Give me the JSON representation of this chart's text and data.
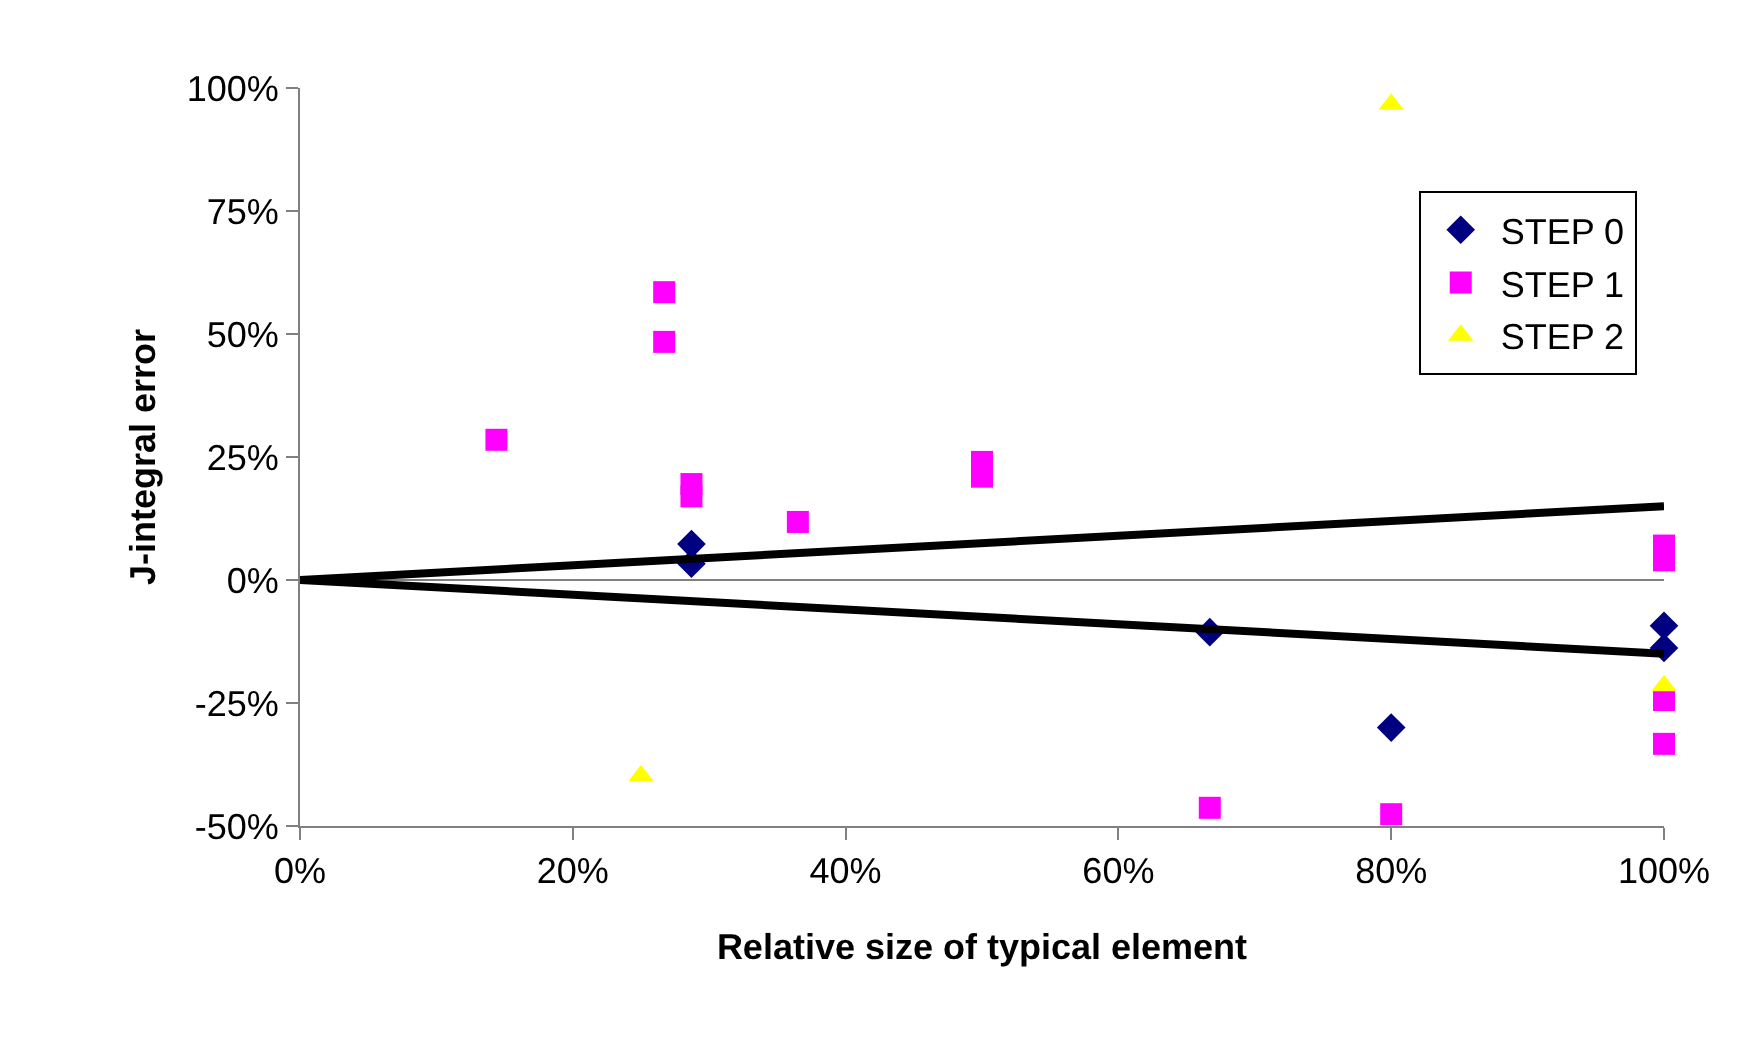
{
  "chart_data": {
    "type": "scatter",
    "xlabel": "Relative size of typical element",
    "ylabel": "J-integral error",
    "xlim": [
      0,
      100
    ],
    "ylim": [
      -50,
      100
    ],
    "xticks": [
      {
        "value": 0,
        "label": "0%"
      },
      {
        "value": 20,
        "label": "20%"
      },
      {
        "value": 40,
        "label": "40%"
      },
      {
        "value": 60,
        "label": "60%"
      },
      {
        "value": 80,
        "label": "80%"
      },
      {
        "value": 100,
        "label": "100%"
      }
    ],
    "yticks": [
      {
        "value": -50,
        "label": "-50%"
      },
      {
        "value": -25,
        "label": "-25%"
      },
      {
        "value": 0,
        "label": "0%"
      },
      {
        "value": 25,
        "label": "25%"
      },
      {
        "value": 50,
        "label": "50%"
      },
      {
        "value": 75,
        "label": "75%"
      },
      {
        "value": 100,
        "label": "100%"
      }
    ],
    "grid": false,
    "legend": "top right",
    "ref_lines": [
      {
        "axis": "y",
        "value": 0,
        "color": "#808080"
      }
    ],
    "series": [
      {
        "name": "STEP 0",
        "color": "#000080",
        "marker": "diamond",
        "x": [
          28.7,
          28.7,
          66.7,
          80,
          100,
          100
        ],
        "values": [
          7.3,
          3.3,
          -10.6,
          -30,
          -9.3,
          -13.8
        ]
      },
      {
        "name": "STEP 1",
        "color": "#ff00ff",
        "marker": "square",
        "x": [
          26.7,
          26.7,
          14.4,
          28.7,
          28.7,
          36.5,
          50,
          50,
          100,
          100,
          100,
          100,
          66.7,
          80
        ],
        "values": [
          58.5,
          48.4,
          28.5,
          17,
          19.5,
          11.8,
          21,
          24,
          4,
          7,
          -24.4,
          -33.3,
          -46.3,
          -47.6
        ]
      },
      {
        "name": "STEP 2",
        "color": "#ffff00",
        "marker": "triangle",
        "x": [
          80,
          25,
          100
        ],
        "values": [
          96.7,
          -39.8,
          -21.5
        ]
      },
      {
        "type": "line",
        "color": "#000000",
        "marker": "none",
        "x": [
          0,
          100
        ],
        "values": [
          0,
          15
        ]
      },
      {
        "type": "line",
        "color": "#000000",
        "marker": "none",
        "x": [
          0,
          100
        ],
        "values": [
          0,
          -15
        ]
      }
    ]
  }
}
